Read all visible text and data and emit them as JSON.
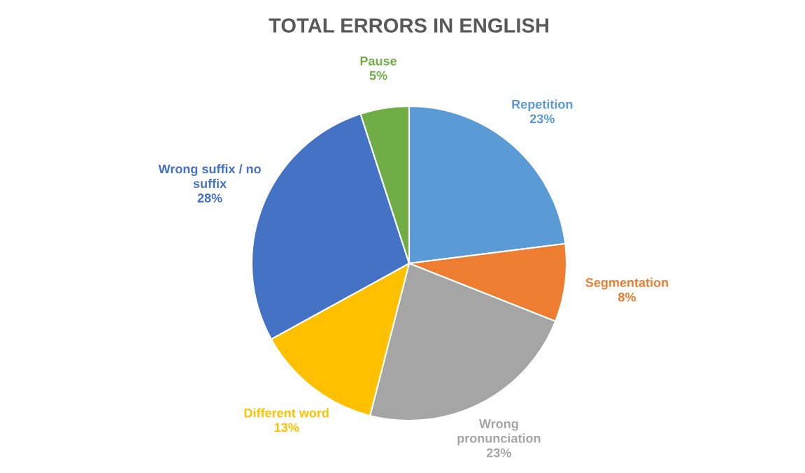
{
  "chart_data": {
    "type": "pie",
    "title": "TOTAL ERRORS IN ENGLISH",
    "categories": [
      "Repetition",
      "Segmentation",
      "Wrong pronunciation",
      "Different word",
      "Wrong suffix / no suffix",
      "Pause"
    ],
    "values": [
      23,
      8,
      23,
      13,
      28,
      5
    ],
    "value_labels": [
      "23%",
      "8%",
      "23%",
      "13%",
      "28%",
      "5%"
    ],
    "colors": [
      "#5b9bd5",
      "#ed7d31",
      "#a5a5a5",
      "#ffc000",
      "#4472c4",
      "#70ad47"
    ],
    "legend": false
  }
}
